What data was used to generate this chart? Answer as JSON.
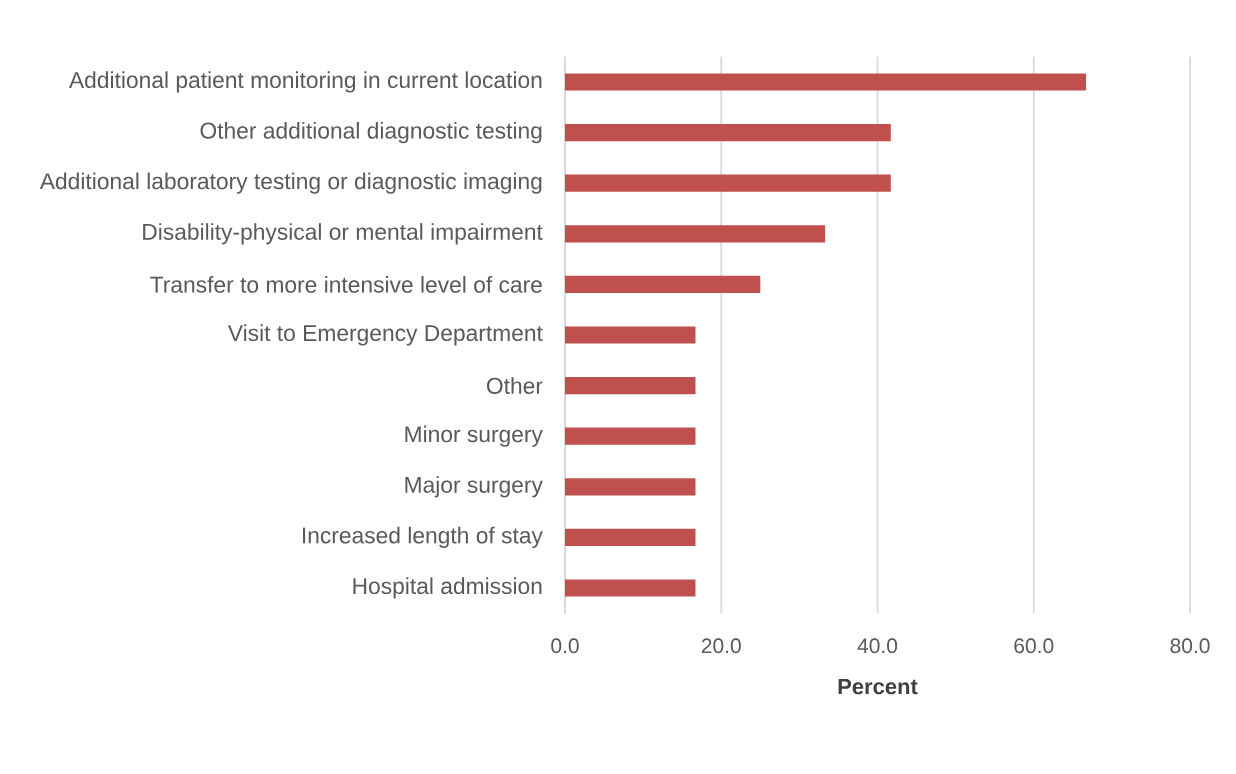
{
  "chart_data": {
    "type": "bar",
    "orientation": "horizontal",
    "categories": [
      "Additional patient monitoring in current location",
      "Other additional diagnostic testing",
      "Additional laboratory testing or diagnostic imaging",
      "Disability-physical or mental impairment",
      "Transfer to more intensive level of care",
      "Visit to Emergency Department",
      "Other",
      "Minor surgery",
      "Major surgery",
      "Increased length of stay",
      "Hospital admission"
    ],
    "values": [
      66.7,
      41.7,
      41.7,
      33.3,
      25.0,
      16.7,
      16.7,
      16.7,
      16.7,
      16.7,
      16.7
    ],
    "color": "#c0504d",
    "xlim": [
      0,
      80
    ],
    "xticks": [
      {
        "value": 0,
        "label": "0.0"
      },
      {
        "value": 20,
        "label": "20.0"
      },
      {
        "value": 40,
        "label": "40.0"
      },
      {
        "value": 60,
        "label": "60.0"
      },
      {
        "value": 80,
        "label": "80.0"
      }
    ],
    "xlabel": "Percent",
    "grid": "x"
  }
}
